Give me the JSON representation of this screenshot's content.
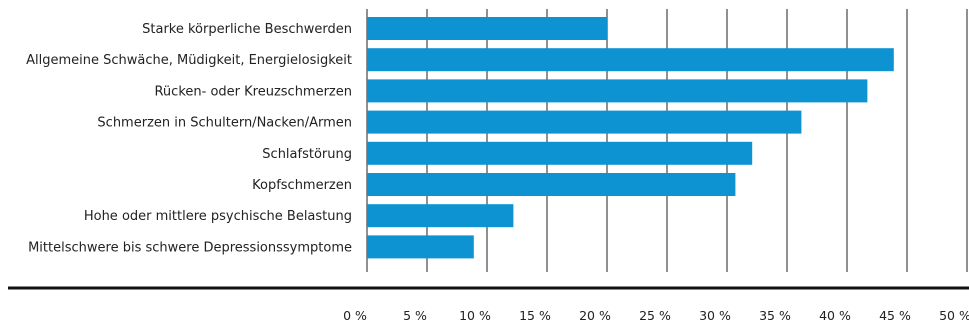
{
  "chart_data": {
    "type": "bar",
    "orientation": "horizontal",
    "title": "",
    "xlabel": "",
    "ylabel": "",
    "categories": [
      "Starke körperliche Beschwerden",
      "Allgemeine Schwäche, Müdigkeit, Energielosigkeit",
      "Rücken- oder Kreuzschmerzen",
      "Schmerzen in Schultern/Nacken/Armen",
      "Schlafstörung",
      "Kopfschmerzen",
      "Hohe oder mittlere psychische Belastung",
      "Mittelschwere bis schwere Depressionssymptome"
    ],
    "values": [
      20.0,
      43.9,
      41.7,
      36.2,
      32.1,
      30.7,
      12.2,
      8.9
    ],
    "xlim": [
      0,
      50
    ],
    "ticks": [
      0,
      5,
      10,
      15,
      20,
      25,
      30,
      35,
      40,
      45,
      50
    ],
    "tick_labels": [
      "0 %",
      "5 %",
      "10 %",
      "15 %",
      "20 %",
      "25 %",
      "30 %",
      "35 %",
      "40 %",
      "45 %",
      "50 %"
    ],
    "bar_color": "#0d93d2",
    "grid_color": "#222222",
    "grid": true,
    "legend": "none"
  }
}
